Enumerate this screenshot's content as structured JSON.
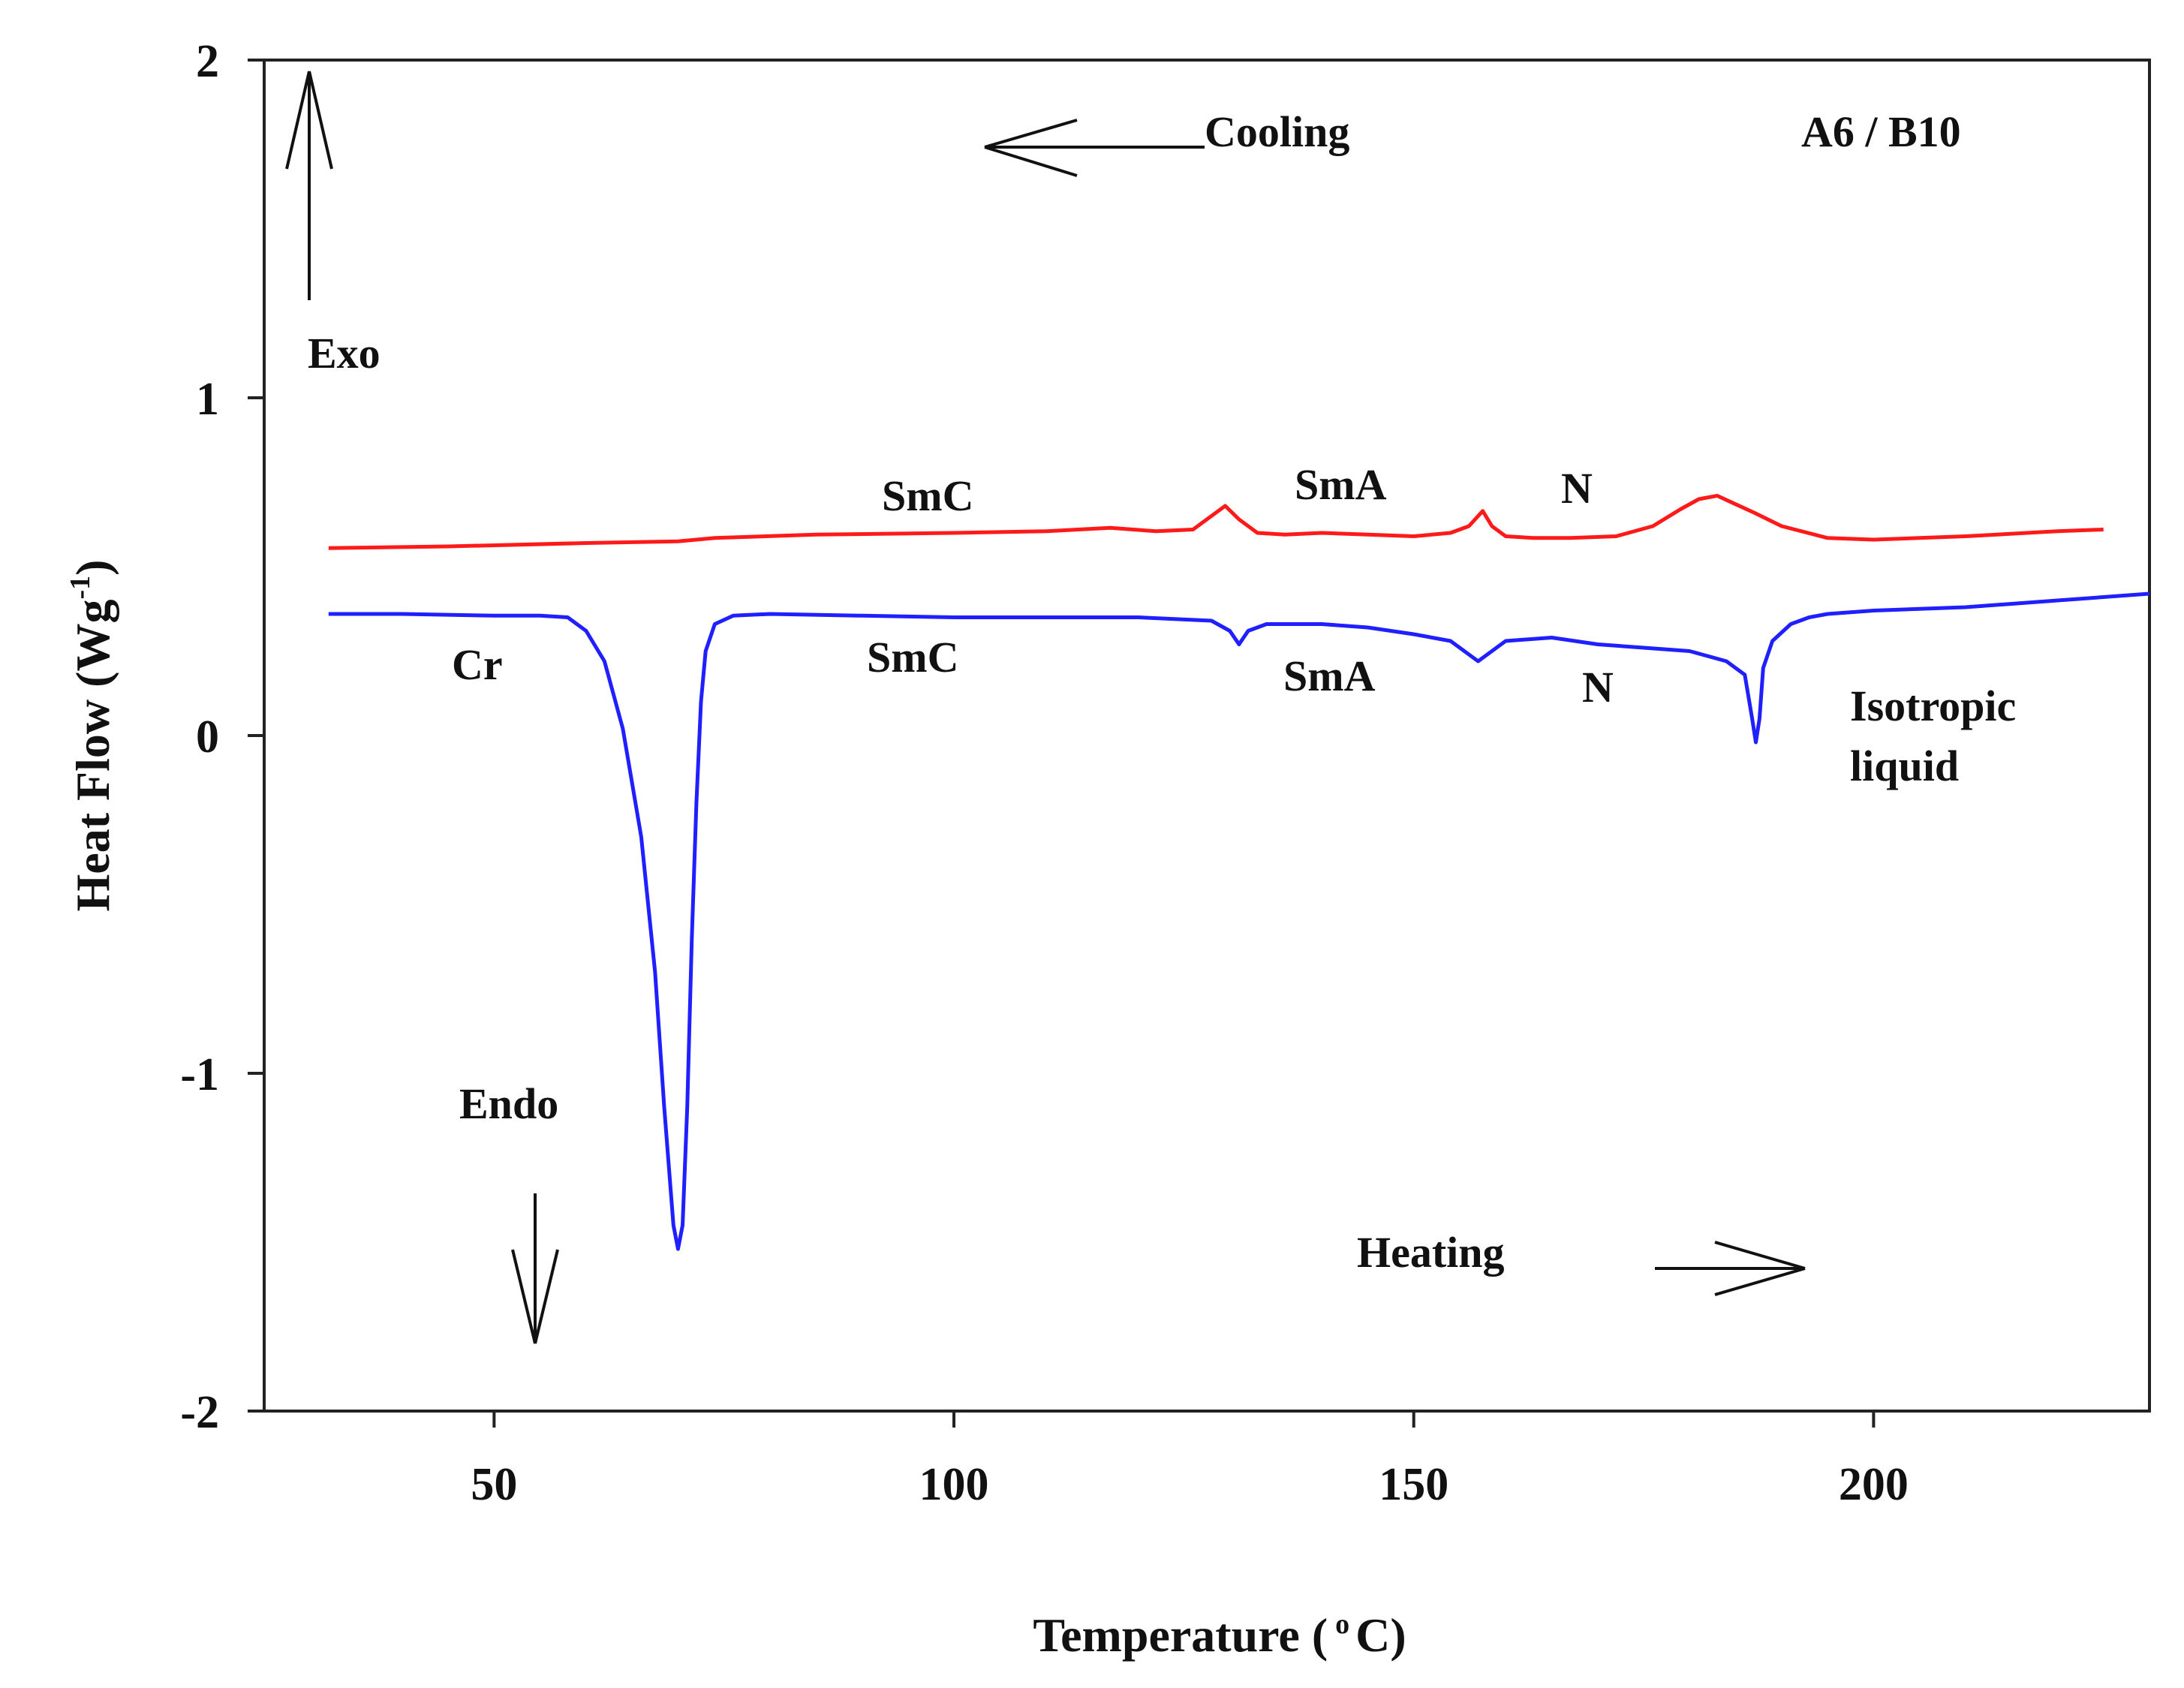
{
  "chart_data": {
    "type": "line",
    "title": "",
    "sample_label": "A6 / B10",
    "xlabel": {
      "main": "Temperature",
      "open": "(",
      "degree": "o",
      "unit": "C)"
    },
    "ylabel": {
      "main": "Heat Flow (Wg",
      "superscript": "-1",
      "close": ")"
    },
    "xlim": [
      25,
      230
    ],
    "ylim": [
      -2,
      2
    ],
    "xticks": [
      50,
      100,
      150,
      200
    ],
    "yticks": [
      -2,
      -1,
      0,
      1,
      2
    ],
    "grid": false,
    "series": [
      {
        "name": "Cooling",
        "color": "#ff1a1a",
        "x": [
          32,
          45,
          60,
          70,
          74,
          85,
          100,
          110,
          117,
          122,
          126,
          128,
          129.5,
          131,
          133,
          136,
          140,
          145,
          150,
          154,
          156,
          157.5,
          158.5,
          160,
          163,
          167,
          172,
          176,
          179,
          181,
          183,
          185,
          187,
          190,
          195,
          200,
          210,
          220,
          225
        ],
        "y": [
          0.555,
          0.56,
          0.57,
          0.575,
          0.585,
          0.595,
          0.6,
          0.605,
          0.615,
          0.605,
          0.61,
          0.65,
          0.68,
          0.64,
          0.6,
          0.595,
          0.6,
          0.595,
          0.59,
          0.6,
          0.62,
          0.665,
          0.62,
          0.59,
          0.585,
          0.585,
          0.59,
          0.62,
          0.67,
          0.7,
          0.71,
          0.685,
          0.66,
          0.62,
          0.585,
          0.58,
          0.59,
          0.605,
          0.61
        ]
      },
      {
        "name": "Heating",
        "color": "#1f1fff",
        "x": [
          32,
          40,
          50,
          55,
          58,
          60,
          62,
          64,
          66,
          67.5,
          68.5,
          69.5,
          70,
          70.5,
          71,
          71.5,
          72,
          72.5,
          73,
          74,
          76,
          80,
          90,
          100,
          110,
          120,
          128,
          130,
          131,
          132,
          134,
          140,
          145,
          150,
          154,
          156,
          157,
          158,
          160,
          165,
          170,
          175,
          180,
          184,
          186,
          186.8,
          187.2,
          187.6,
          188,
          189,
          191,
          193,
          195,
          200,
          210,
          220,
          230
        ],
        "y": [
          0.36,
          0.36,
          0.355,
          0.355,
          0.35,
          0.31,
          0.22,
          0.02,
          -0.3,
          -0.7,
          -1.1,
          -1.45,
          -1.52,
          -1.45,
          -1.1,
          -0.6,
          -0.2,
          0.1,
          0.25,
          0.33,
          0.355,
          0.36,
          0.355,
          0.35,
          0.35,
          0.35,
          0.34,
          0.31,
          0.27,
          0.31,
          0.33,
          0.33,
          0.32,
          0.3,
          0.28,
          0.24,
          0.22,
          0.24,
          0.28,
          0.29,
          0.27,
          0.26,
          0.25,
          0.22,
          0.18,
          0.05,
          -0.02,
          0.05,
          0.2,
          0.28,
          0.33,
          0.35,
          0.36,
          0.37,
          0.38,
          0.4,
          0.42
        ]
      }
    ],
    "annotations": {
      "cooling_label": "Cooling",
      "heating_label": "Heating",
      "exo_label": "Exo",
      "endo_label": "Endo",
      "cooling_phases": [
        "SmC",
        "SmA",
        "N"
      ],
      "heating_phases": [
        "Cr",
        "SmC",
        "SmA",
        "N"
      ],
      "isotropic_line1": "Isotropic",
      "isotropic_line2": "liquid"
    }
  }
}
